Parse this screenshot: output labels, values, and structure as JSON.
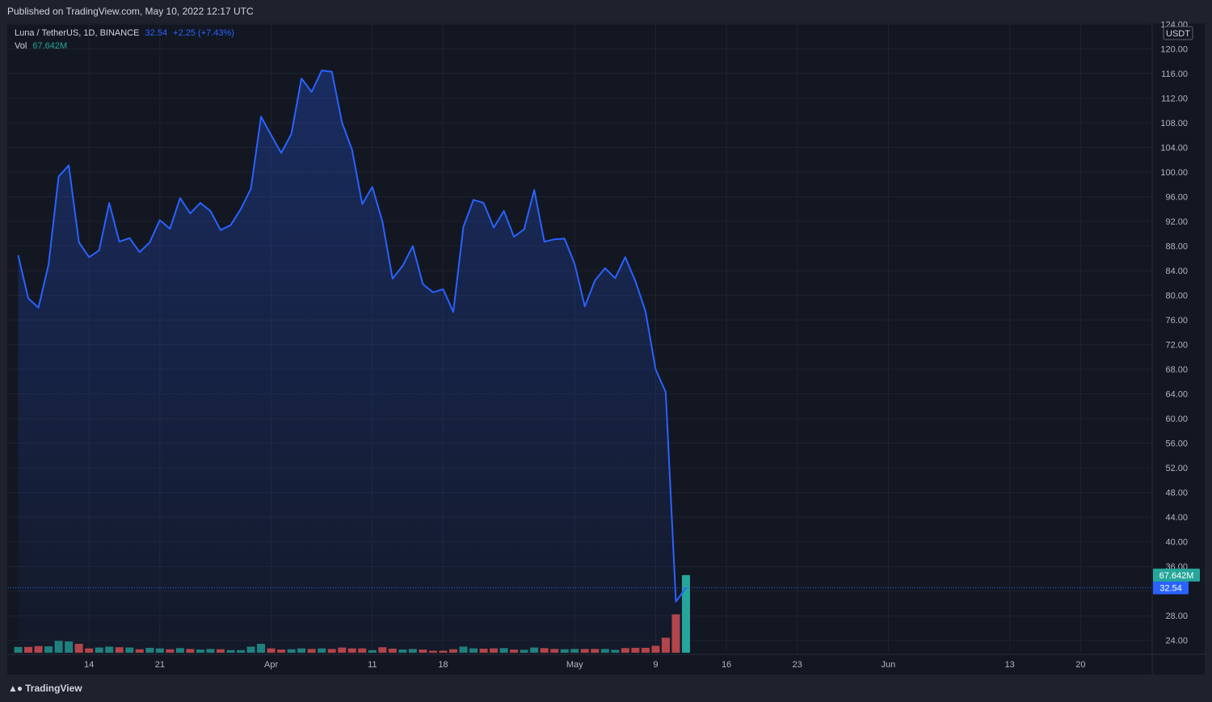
{
  "published": "Published on TradingView.com, May 10, 2022 12:17 UTC",
  "legend": {
    "symbol": "Luna / TetherUS, 1D, BINANCE",
    "price": "32.54",
    "change": "+2.25 (+7.43%)",
    "vol_label": "Vol",
    "vol_value": "67.642M"
  },
  "footer": {
    "brand": "TradingView",
    "brand_icon": "tradingview-logo-icon"
  },
  "colors": {
    "line": "#2962ff",
    "up_volume": "#26a69a",
    "down_volume": "#ef5350",
    "background": "#131722",
    "grid": "#1f2330"
  },
  "chart_data": {
    "type": "area",
    "title": "",
    "currency": "USDT",
    "ylim": [
      22,
      124
    ],
    "y_ticks": [
      "24.00",
      "28.00",
      "32.00",
      "36.00",
      "40.00",
      "44.00",
      "48.00",
      "52.00",
      "56.00",
      "60.00",
      "64.00",
      "68.00",
      "72.00",
      "76.00",
      "80.00",
      "84.00",
      "88.00",
      "92.00",
      "96.00",
      "100.00",
      "104.00",
      "108.00",
      "112.00",
      "116.00",
      "120.00",
      "124.00"
    ],
    "x_ticks": [
      {
        "label": "14",
        "day": 7
      },
      {
        "label": "21",
        "day": 14
      },
      {
        "label": "Apr",
        "day": 25
      },
      {
        "label": "11",
        "day": 35
      },
      {
        "label": "18",
        "day": 42
      },
      {
        "label": "May",
        "day": 55
      },
      {
        "label": "9",
        "day": 63
      },
      {
        "label": "16",
        "day": 70
      },
      {
        "label": "23",
        "day": 77
      },
      {
        "label": "Jun",
        "day": 86
      },
      {
        "label": "13",
        "day": 98
      },
      {
        "label": "20",
        "day": 105
      }
    ],
    "day_range": [
      -1,
      112
    ],
    "start_date": "2022-03-07",
    "close": [
      86.5,
      79.5,
      78,
      85,
      99.3,
      101.1,
      88.6,
      86.2,
      87.3,
      95,
      88.7,
      89.3,
      87,
      88.6,
      92.2,
      90.8,
      95.8,
      93.3,
      95,
      93.7,
      90.6,
      91.4,
      94,
      97.3,
      109,
      106,
      103.1,
      106.2,
      115.2,
      113,
      116.5,
      116.3,
      108.1,
      103.6,
      94.8,
      97.6,
      92,
      82.7,
      84.8,
      88,
      81.8,
      80.5,
      81,
      77.3,
      91.1,
      95.5,
      95,
      91,
      93.7,
      89.5,
      90.7,
      97.1,
      88.7,
      89.1,
      89.2,
      85.1,
      78.2,
      82.4,
      84.4,
      82.8,
      86.2,
      82.3,
      77.4,
      68,
      64.3,
      30.3,
      32.54
    ],
    "volume_label_value": "67.642M",
    "current_price_label": "32.54",
    "volume": [
      {
        "v": 2.0,
        "dir": "up"
      },
      {
        "v": 2.0,
        "dir": "down"
      },
      {
        "v": 2.3,
        "dir": "down"
      },
      {
        "v": 2.2,
        "dir": "up"
      },
      {
        "v": 4.1,
        "dir": "up"
      },
      {
        "v": 3.9,
        "dir": "up"
      },
      {
        "v": 3.1,
        "dir": "down"
      },
      {
        "v": 1.5,
        "dir": "down"
      },
      {
        "v": 1.8,
        "dir": "up"
      },
      {
        "v": 2.1,
        "dir": "up"
      },
      {
        "v": 1.9,
        "dir": "down"
      },
      {
        "v": 1.8,
        "dir": "up"
      },
      {
        "v": 1.2,
        "dir": "down"
      },
      {
        "v": 1.7,
        "dir": "up"
      },
      {
        "v": 1.5,
        "dir": "up"
      },
      {
        "v": 1.2,
        "dir": "down"
      },
      {
        "v": 1.6,
        "dir": "up"
      },
      {
        "v": 1.3,
        "dir": "down"
      },
      {
        "v": 1.1,
        "dir": "up"
      },
      {
        "v": 1.3,
        "dir": "up"
      },
      {
        "v": 1.2,
        "dir": "down"
      },
      {
        "v": 0.9,
        "dir": "up"
      },
      {
        "v": 0.9,
        "dir": "up"
      },
      {
        "v": 2.1,
        "dir": "up"
      },
      {
        "v": 3.1,
        "dir": "up"
      },
      {
        "v": 1.5,
        "dir": "down"
      },
      {
        "v": 1.1,
        "dir": "down"
      },
      {
        "v": 1.2,
        "dir": "up"
      },
      {
        "v": 1.5,
        "dir": "up"
      },
      {
        "v": 1.3,
        "dir": "down"
      },
      {
        "v": 1.5,
        "dir": "up"
      },
      {
        "v": 1.3,
        "dir": "down"
      },
      {
        "v": 1.8,
        "dir": "down"
      },
      {
        "v": 1.5,
        "dir": "down"
      },
      {
        "v": 1.5,
        "dir": "down"
      },
      {
        "v": 0.9,
        "dir": "up"
      },
      {
        "v": 1.9,
        "dir": "down"
      },
      {
        "v": 1.4,
        "dir": "down"
      },
      {
        "v": 1.1,
        "dir": "up"
      },
      {
        "v": 1.3,
        "dir": "up"
      },
      {
        "v": 1.1,
        "dir": "down"
      },
      {
        "v": 0.7,
        "dir": "down"
      },
      {
        "v": 0.7,
        "dir": "down"
      },
      {
        "v": 1.2,
        "dir": "down"
      },
      {
        "v": 2.1,
        "dir": "up"
      },
      {
        "v": 1.5,
        "dir": "up"
      },
      {
        "v": 1.4,
        "dir": "down"
      },
      {
        "v": 1.5,
        "dir": "down"
      },
      {
        "v": 1.6,
        "dir": "up"
      },
      {
        "v": 1.1,
        "dir": "down"
      },
      {
        "v": 1.0,
        "dir": "up"
      },
      {
        "v": 1.8,
        "dir": "up"
      },
      {
        "v": 1.6,
        "dir": "down"
      },
      {
        "v": 1.3,
        "dir": "down"
      },
      {
        "v": 1.2,
        "dir": "up"
      },
      {
        "v": 1.3,
        "dir": "up"
      },
      {
        "v": 1.3,
        "dir": "down"
      },
      {
        "v": 1.3,
        "dir": "down"
      },
      {
        "v": 1.3,
        "dir": "up"
      },
      {
        "v": 1.0,
        "dir": "up"
      },
      {
        "v": 1.6,
        "dir": "down"
      },
      {
        "v": 1.7,
        "dir": "down"
      },
      {
        "v": 1.7,
        "dir": "down"
      },
      {
        "v": 2.4,
        "dir": "down"
      },
      {
        "v": 5.2,
        "dir": "down"
      },
      {
        "v": 13.3,
        "dir": "down"
      },
      {
        "v": 26.9,
        "dir": "up"
      }
    ],
    "volume_max": 28
  }
}
